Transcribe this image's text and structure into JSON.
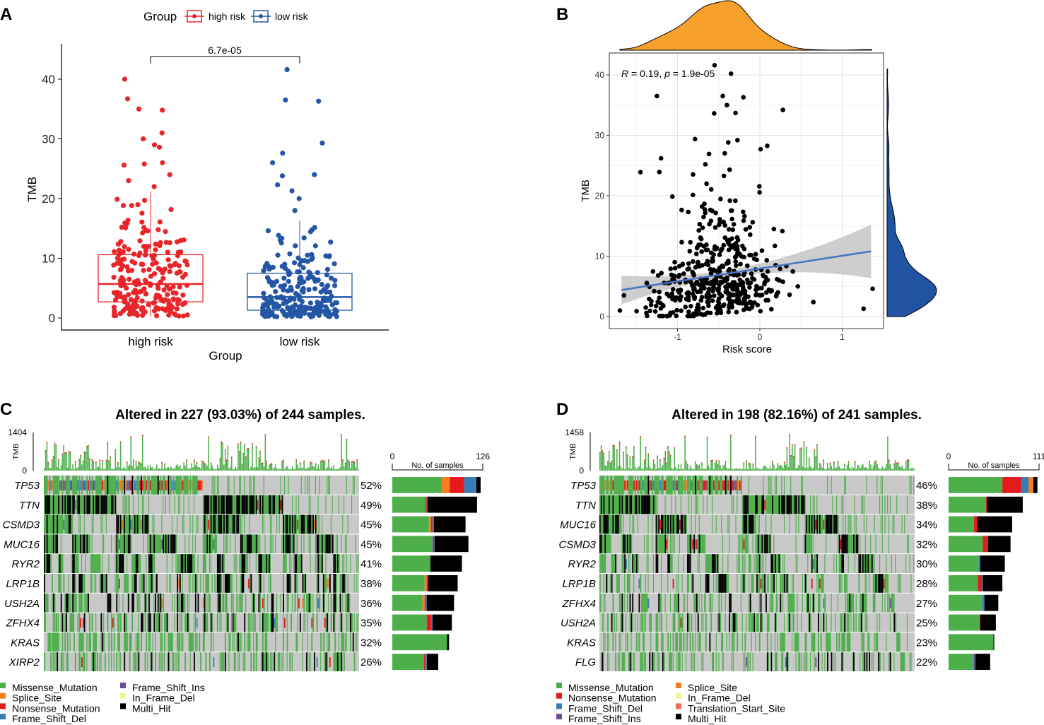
{
  "panels": {
    "a": "A",
    "b": "B",
    "c": "C",
    "d": "D"
  },
  "colors": {
    "high_risk": "#E8262A",
    "low_risk": "#2456A6",
    "smooth": "#4472C4",
    "density_top": "#F7A02B",
    "density_right": "#2153A3",
    "Missense_Mutation": "#4DAF4A",
    "Splice_Site": "#F47E20",
    "Nonsense_Mutation": "#E41A1C",
    "Frame_Shift_Del": "#377EB8",
    "Frame_Shift_Ins": "#6A4C9C",
    "In_Frame_Del": "#F3F39A",
    "Translation_Start_Site": "#F06D50",
    "Multi_Hit": "#000000",
    "none": "#C8C8C8"
  },
  "chart_data": [
    {
      "id": "A",
      "type": "box",
      "legend_title": "Group",
      "legend": [
        "high risk",
        "low risk"
      ],
      "categories": [
        "high risk",
        "low risk"
      ],
      "xlabel": "Group",
      "ylabel": "TMB",
      "ylim": [
        -1,
        45
      ],
      "yticks": [
        0,
        10,
        20,
        30,
        40
      ],
      "pvalue": "6.7e-05",
      "boxes": [
        {
          "name": "high risk",
          "q1": 2.7,
          "median": 5.7,
          "q3": 10.6,
          "whisker_low": 0.3,
          "whisker_high": 21.2,
          "n": 240,
          "outliers": [
            40,
            36.7,
            35,
            34.8,
            31,
            30,
            29,
            28.6,
            26,
            25.8,
            25.6,
            24,
            23,
            22
          ]
        },
        {
          "name": "low risk",
          "q1": 1.3,
          "median": 3.5,
          "q3": 7.5,
          "whisker_low": 0.2,
          "whisker_high": 16.3,
          "n": 240,
          "outliers": [
            41.6,
            36.5,
            36.3,
            29.3,
            27.6,
            26,
            24,
            23.8,
            22.3,
            21.3,
            20,
            18
          ]
        }
      ]
    },
    {
      "id": "B",
      "type": "scatter",
      "xlabel": "Risk score",
      "ylabel": "TMB",
      "xticks": [
        -1,
        0,
        1
      ],
      "yticks": [
        0,
        10,
        20,
        30,
        40
      ],
      "xlim": [
        -1.83,
        1.5
      ],
      "ylim": [
        -1,
        43
      ],
      "annotation": {
        "R_label": "R",
        "R": "= 0.19, ",
        "p_label": "p",
        "p": "= 1.9e-05"
      },
      "regression": {
        "x": [
          -1.68,
          1.35
        ],
        "y": [
          4.4,
          10.8
        ]
      },
      "n": 480,
      "outliers": [
        [
          -0.55,
          41.6
        ],
        [
          -0.35,
          40.2
        ],
        [
          -1.25,
          36.5
        ],
        [
          -0.45,
          36.5
        ],
        [
          -0.2,
          36.3
        ],
        [
          0.28,
          34.2
        ],
        [
          -0.4,
          35
        ],
        [
          -1.2,
          26.2
        ],
        [
          -1.45,
          23.9
        ],
        [
          1.37,
          4.6
        ],
        [
          1.26,
          1.3
        ],
        [
          -1.7,
          1.0
        ],
        [
          -1.65,
          3.5
        ],
        [
          0.65,
          2.4
        ]
      ]
    },
    {
      "id": "C",
      "type": "oncoplot",
      "title": "Altered in 227 (93.03%) of 244 samples.",
      "samples": 244,
      "tmb_max": "1404",
      "tmb_min": "0",
      "tmb_label": "TMB",
      "bar_axis": {
        "min": "0",
        "max": "126",
        "label": "No. of samples",
        "max_value": 126
      },
      "genes": [
        {
          "gene": "TP53",
          "pct": "52%",
          "counts": {
            "Missense_Mutation": 69,
            "Splice_Site": 11,
            "Nonsense_Mutation": 20,
            "Frame_Shift_Del": 16,
            "Frame_Shift_Ins": 1,
            "Multi_Hit": 6
          }
        },
        {
          "gene": "TTN",
          "pct": "49%",
          "counts": {
            "Missense_Mutation": 46,
            "Nonsense_Mutation": 2,
            "Frame_Shift_Del": 1,
            "Multi_Hit": 69
          }
        },
        {
          "gene": "CSMD3",
          "pct": "45%",
          "counts": {
            "Missense_Mutation": 51,
            "Splice_Site": 3,
            "Nonsense_Mutation": 2,
            "Frame_Shift_Del": 2,
            "Multi_Hit": 44
          }
        },
        {
          "gene": "MUC16",
          "pct": "45%",
          "counts": {
            "Missense_Mutation": 56,
            "Frame_Shift_Ins": 3,
            "Multi_Hit": 47
          }
        },
        {
          "gene": "RYR2",
          "pct": "41%",
          "counts": {
            "Missense_Mutation": 53,
            "Multi_Hit": 44
          }
        },
        {
          "gene": "LRP1B",
          "pct": "38%",
          "counts": {
            "Missense_Mutation": 45,
            "Splice_Site": 3,
            "Nonsense_Mutation": 2,
            "Multi_Hit": 41
          }
        },
        {
          "gene": "USH2A",
          "pct": "36%",
          "counts": {
            "Missense_Mutation": 42,
            "Splice_Site": 3,
            "Nonsense_Mutation": 2,
            "Frame_Shift_Del": 1,
            "Multi_Hit": 38
          }
        },
        {
          "gene": "ZFHX4",
          "pct": "35%",
          "counts": {
            "Missense_Mutation": 48,
            "Nonsense_Mutation": 6,
            "Frame_Shift_Del": 2,
            "Multi_Hit": 27
          }
        },
        {
          "gene": "KRAS",
          "pct": "32%",
          "counts": {
            "Missense_Mutation": 76,
            "Multi_Hit": 3
          }
        },
        {
          "gene": "XIRP2",
          "pct": "26%",
          "counts": {
            "Missense_Mutation": 44,
            "Nonsense_Mutation": 2,
            "Frame_Shift_Del": 2,
            "Multi_Hit": 16
          }
        }
      ],
      "legend": [
        "Missense_Mutation",
        "Splice_Site",
        "Nonsense_Mutation",
        "Frame_Shift_Del",
        "Frame_Shift_Ins",
        "In_Frame_Del",
        "Multi_Hit"
      ]
    },
    {
      "id": "D",
      "type": "oncoplot",
      "title": "Altered in 198 (82.16%) of 241 samples.",
      "samples": 241,
      "tmb_max": "1458",
      "tmb_min": "0",
      "tmb_label": "TMB",
      "bar_axis": {
        "min": "0",
        "max": "111",
        "label": "No. of samples",
        "max_value": 111
      },
      "genes": [
        {
          "gene": "TP53",
          "pct": "46%",
          "counts": {
            "Missense_Mutation": 66,
            "Nonsense_Mutation": 23,
            "Frame_Shift_Del": 9,
            "Splice_Site": 6,
            "Multi_Hit": 5
          }
        },
        {
          "gene": "TTN",
          "pct": "38%",
          "counts": {
            "Missense_Mutation": 46,
            "Nonsense_Mutation": 1,
            "Multi_Hit": 44
          }
        },
        {
          "gene": "MUC16",
          "pct": "34%",
          "counts": {
            "Missense_Mutation": 31,
            "Nonsense_Mutation": 4,
            "Multi_Hit": 43
          }
        },
        {
          "gene": "CSMD3",
          "pct": "32%",
          "counts": {
            "Missense_Mutation": 42,
            "Nonsense_Mutation": 5,
            "Frame_Shift_Del": 1,
            "Multi_Hit": 28
          }
        },
        {
          "gene": "RYR2",
          "pct": "30%",
          "counts": {
            "Missense_Mutation": 37,
            "Frame_Shift_Del": 2,
            "Multi_Hit": 30
          }
        },
        {
          "gene": "LRP1B",
          "pct": "28%",
          "counts": {
            "Missense_Mutation": 36,
            "Nonsense_Mutation": 5,
            "Frame_Shift_Del": 1,
            "Multi_Hit": 24
          }
        },
        {
          "gene": "ZFHX4",
          "pct": "27%",
          "counts": {
            "Missense_Mutation": 41,
            "Frame_Shift_Del": 2,
            "Frame_Shift_Ins": 1,
            "Multi_Hit": 17
          }
        },
        {
          "gene": "USH2A",
          "pct": "25%",
          "counts": {
            "Missense_Mutation": 38,
            "Nonsense_Mutation": 1,
            "Multi_Hit": 19
          }
        },
        {
          "gene": "KRAS",
          "pct": "23%",
          "counts": {
            "Missense_Mutation": 55,
            "Multi_Hit": 1
          }
        },
        {
          "gene": "FLG",
          "pct": "22%",
          "counts": {
            "Missense_Mutation": 30,
            "Frame_Shift_Del": 1,
            "Frame_Shift_Ins": 2,
            "Multi_Hit": 18
          }
        }
      ],
      "legend": [
        "Missense_Mutation",
        "Nonsense_Mutation",
        "Frame_Shift_Del",
        "Frame_Shift_Ins",
        "Splice_Site",
        "In_Frame_Del",
        "Translation_Start_Site",
        "Multi_Hit"
      ]
    }
  ]
}
